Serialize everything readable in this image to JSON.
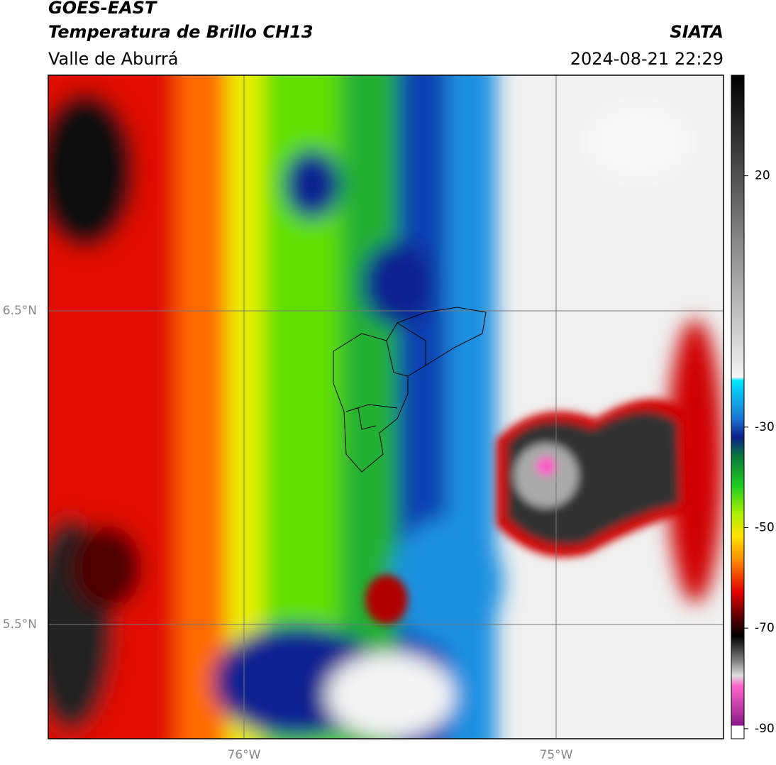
{
  "header": {
    "title": "GOES-EAST",
    "subtitle": "Temperatura de Brillo CH13",
    "source": "SIATA",
    "region": "Valle de Aburrá",
    "datetime": "2024-08-21 22:29"
  },
  "map": {
    "lat_labels": [
      "6.5°N",
      "5.5°N"
    ],
    "lon_labels": [
      "76°W",
      "75°W"
    ]
  },
  "colorbar": {
    "lim": [
      -92,
      40
    ],
    "ticks": [
      20,
      -30,
      -50,
      -70,
      -90
    ]
  }
}
